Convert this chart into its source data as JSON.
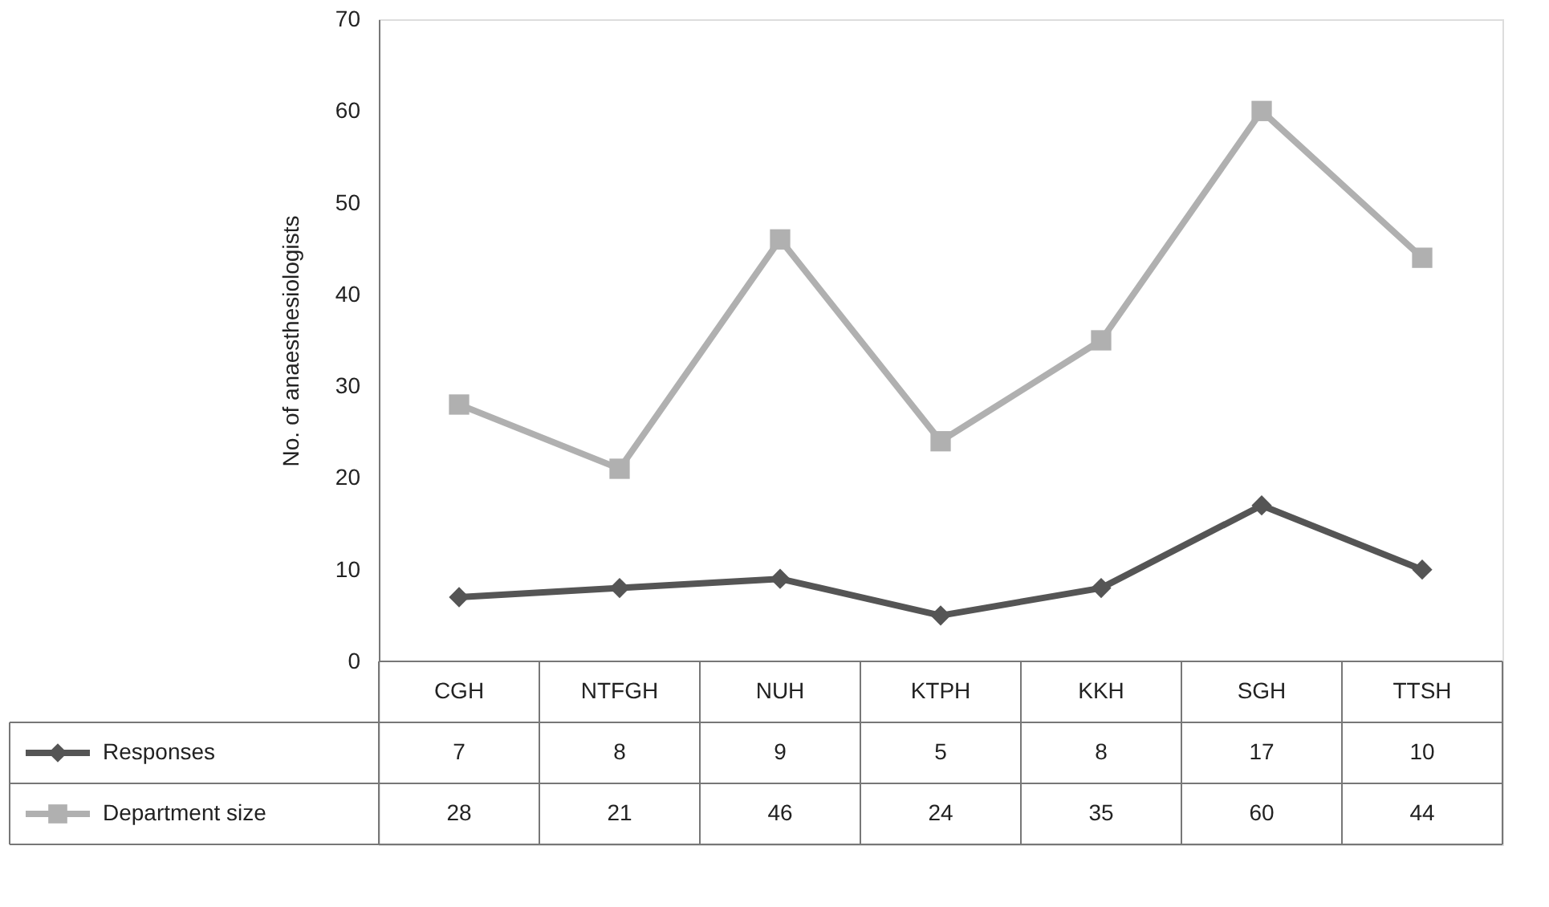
{
  "chart_data": {
    "type": "line",
    "ylabel": "No. of anaesthesiologists",
    "categories": [
      "CGH",
      "NTFGH",
      "NUH",
      "KTPH",
      "KKH",
      "SGH",
      "TTSH"
    ],
    "series": [
      {
        "name": "Responses",
        "color": "#555555",
        "marker": "diamond",
        "values": [
          7,
          8,
          9,
          5,
          8,
          17,
          10
        ]
      },
      {
        "name": "Department size",
        "color": "#b0b0b0",
        "marker": "square",
        "values": [
          28,
          21,
          46,
          24,
          35,
          60,
          44
        ]
      }
    ],
    "ylim": [
      0,
      70
    ],
    "yticks": [
      0,
      10,
      20,
      30,
      40,
      50,
      60,
      70
    ],
    "grid": false,
    "legend": "bottom left",
    "data_labels": true
  }
}
